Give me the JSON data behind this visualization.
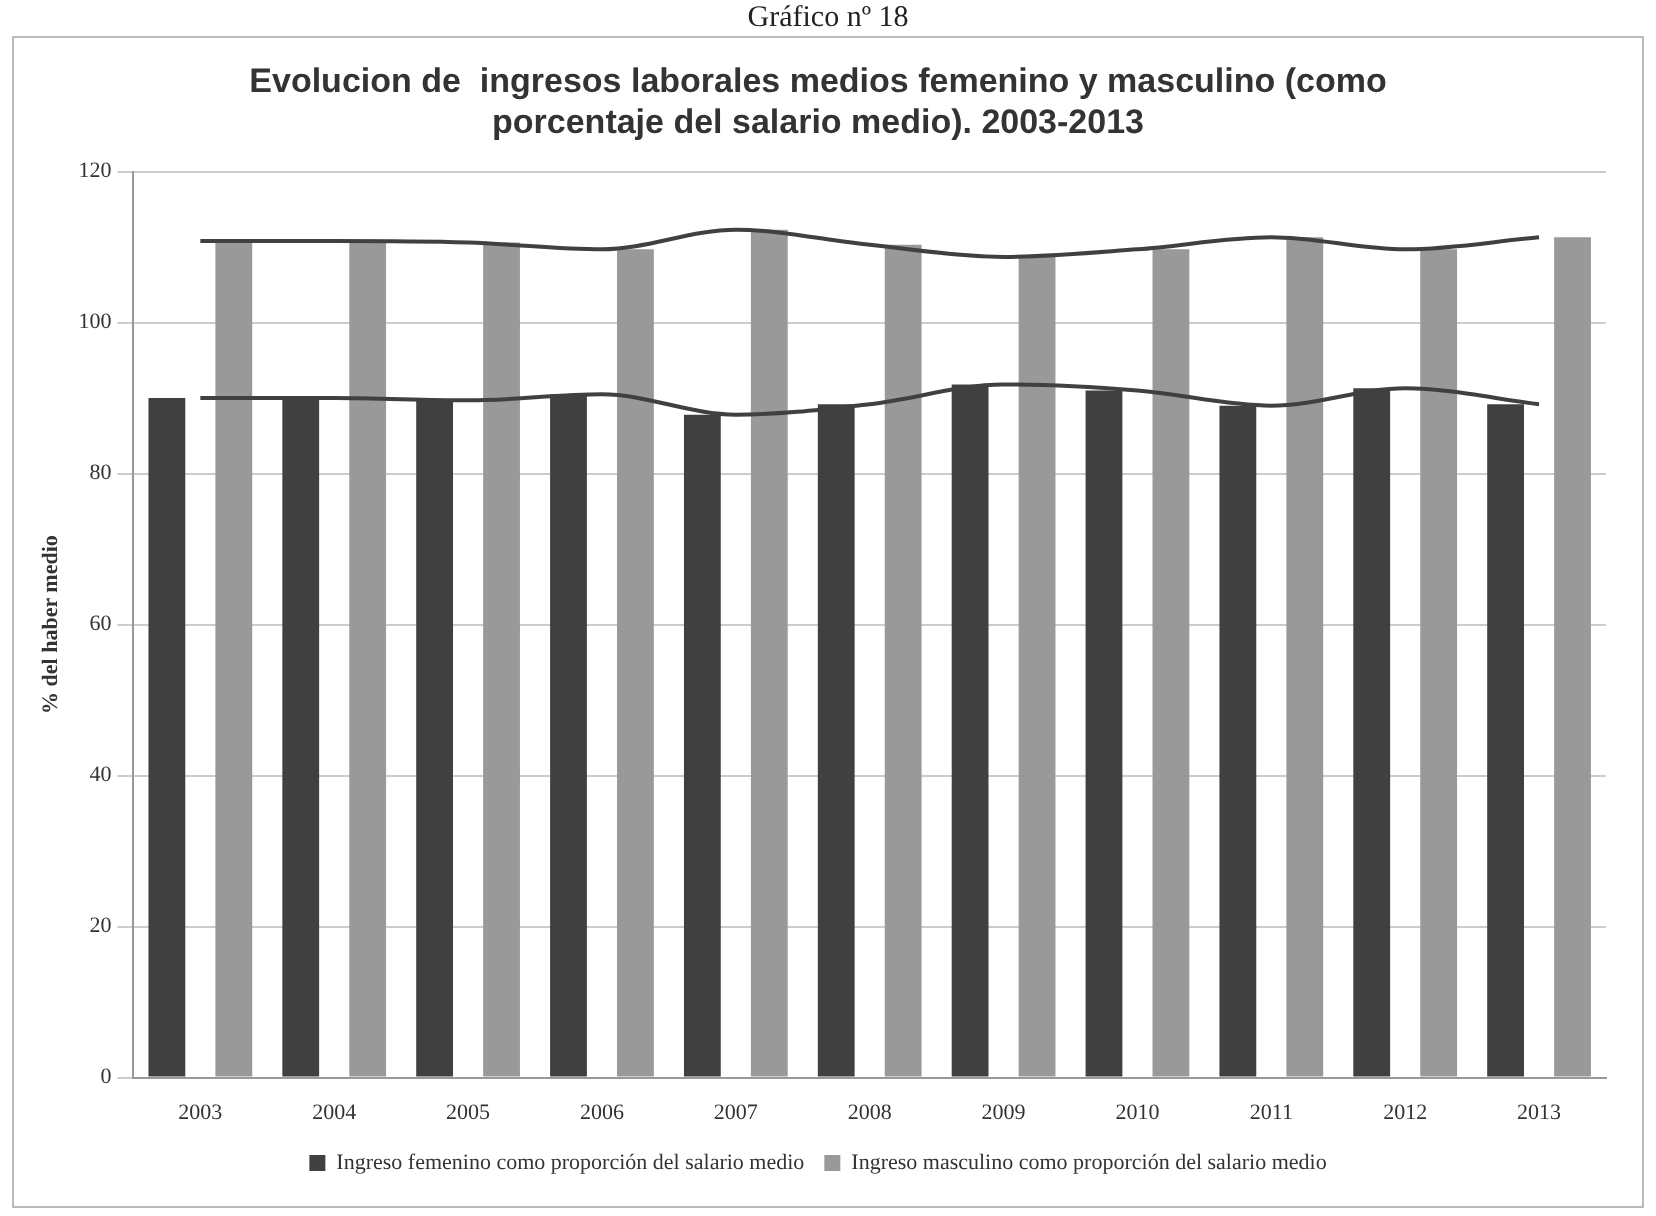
{
  "chart_data": {
    "type": "bar",
    "title": "Evolucion de  ingresos laborales medios femenino y masculino (como porcentaje del salario medio). 2003-2013",
    "annotations": [
      "Gráfico nº 18"
    ],
    "ylabel": "% del haber medio",
    "categories": [
      "2003",
      "2004",
      "2005",
      "2006",
      "2007",
      "2008",
      "2009",
      "2010",
      "2011",
      "2012",
      "2013"
    ],
    "series": [
      {
        "name": "Ingreso femenino como proporción del salario medio",
        "color": "#404040",
        "values": [
          90.0,
          90.0,
          89.7,
          90.5,
          87.8,
          89.2,
          91.8,
          91.0,
          89.0,
          91.3,
          89.2
        ]
      },
      {
        "name": "Ingreso masculino como proporción del salario medio",
        "color": "#999999",
        "values": [
          110.8,
          110.8,
          110.6,
          109.7,
          112.3,
          110.3,
          108.7,
          109.7,
          111.3,
          109.7,
          111.3
        ]
      },
      {
        "type": "line",
        "color": "#404040",
        "values": [
          90.0,
          90.0,
          89.7,
          90.5,
          87.8,
          89.2,
          91.8,
          91.0,
          89.0,
          91.3,
          89.2
        ]
      },
      {
        "type": "line",
        "color": "#404040",
        "values": [
          110.8,
          110.8,
          110.6,
          109.7,
          112.3,
          110.3,
          108.7,
          109.7,
          111.3,
          109.7,
          111.3
        ]
      }
    ],
    "ylim": [
      0,
      120
    ],
    "yticks": [
      0,
      20,
      40,
      60,
      80,
      100,
      120
    ],
    "grid": "y",
    "legend": "bottom",
    "marker": "none"
  }
}
